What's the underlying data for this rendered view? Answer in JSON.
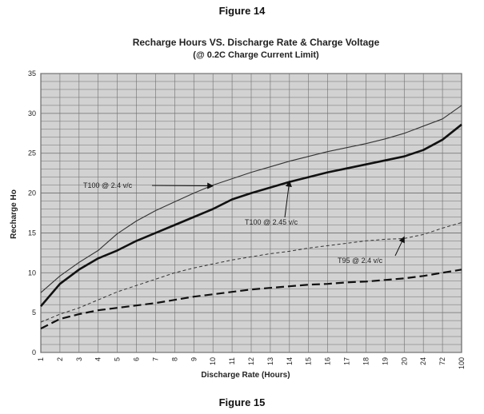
{
  "figure_caption_top": "Figure 14",
  "figure_caption_bottom": "Figure 15",
  "chart_data": {
    "type": "line",
    "title": "Recharge Hours VS. Discharge Rate & Charge Voltage",
    "subtitle": "(@ 0.2C Charge Current Limit)",
    "xlabel": "Discharge Rate (Hours)",
    "ylabel": "Recharge Ho",
    "x_scale": "categorical",
    "categories": [
      "1",
      "2",
      "3",
      "4",
      "5",
      "6",
      "7",
      "8",
      "9",
      "10",
      "11",
      "12",
      "13",
      "14",
      "15",
      "16",
      "17",
      "18",
      "19",
      "20",
      "24",
      "72",
      "100"
    ],
    "ylim": [
      0,
      35
    ],
    "yticks": [
      0,
      5,
      10,
      15,
      20,
      25,
      30,
      35
    ],
    "grid": true,
    "grid_color": "#6e6e6e",
    "plot_background": "#d2d2d2",
    "series": [
      {
        "name": "T100 @ 2.4 v/c",
        "style": "thin-solid",
        "color": "#333333",
        "values": [
          7.5,
          9.6,
          11.3,
          12.8,
          14.9,
          16.5,
          17.8,
          18.9,
          20.0,
          21.0,
          21.8,
          22.6,
          23.3,
          24.0,
          24.6,
          25.2,
          25.7,
          26.2,
          26.8,
          27.5,
          28.4,
          29.3,
          31.0
        ]
      },
      {
        "name": "T100 @ 2.45 v/c",
        "style": "thick-solid",
        "color": "#111111",
        "values": [
          5.8,
          8.6,
          10.4,
          11.8,
          12.8,
          14.0,
          15.0,
          16.0,
          17.0,
          18.0,
          19.2,
          20.0,
          20.7,
          21.4,
          22.0,
          22.6,
          23.1,
          23.6,
          24.1,
          24.6,
          25.4,
          26.7,
          28.6
        ]
      },
      {
        "name": "T95 @ 2.4 v/c",
        "style": "thin-dashed",
        "color": "#333333",
        "values": [
          3.8,
          4.8,
          5.6,
          6.6,
          7.6,
          8.4,
          9.2,
          10.0,
          10.6,
          11.1,
          11.6,
          12.0,
          12.4,
          12.7,
          13.1,
          13.4,
          13.7,
          14.0,
          14.2,
          14.3,
          14.8,
          15.6,
          16.3
        ]
      },
      {
        "name": "",
        "style": "thick-dashed",
        "color": "#111111",
        "values": [
          3.0,
          4.2,
          4.8,
          5.3,
          5.6,
          5.9,
          6.2,
          6.6,
          7.0,
          7.3,
          7.6,
          7.9,
          8.1,
          8.3,
          8.5,
          8.6,
          8.8,
          8.9,
          9.1,
          9.3,
          9.6,
          10.0,
          10.4
        ]
      }
    ],
    "annotations": [
      {
        "text": "T100 @ 2.4 v/c",
        "target_series": 0,
        "target_x": "10",
        "target_y": 20.9
      },
      {
        "text": "T100 @ 2.45 v/c",
        "target_series": 1,
        "target_x": "14",
        "target_y": 21.5
      },
      {
        "text": "T95 @ 2.4 v/c",
        "target_series": 2,
        "target_x": "20",
        "target_y": 14.5
      }
    ]
  }
}
